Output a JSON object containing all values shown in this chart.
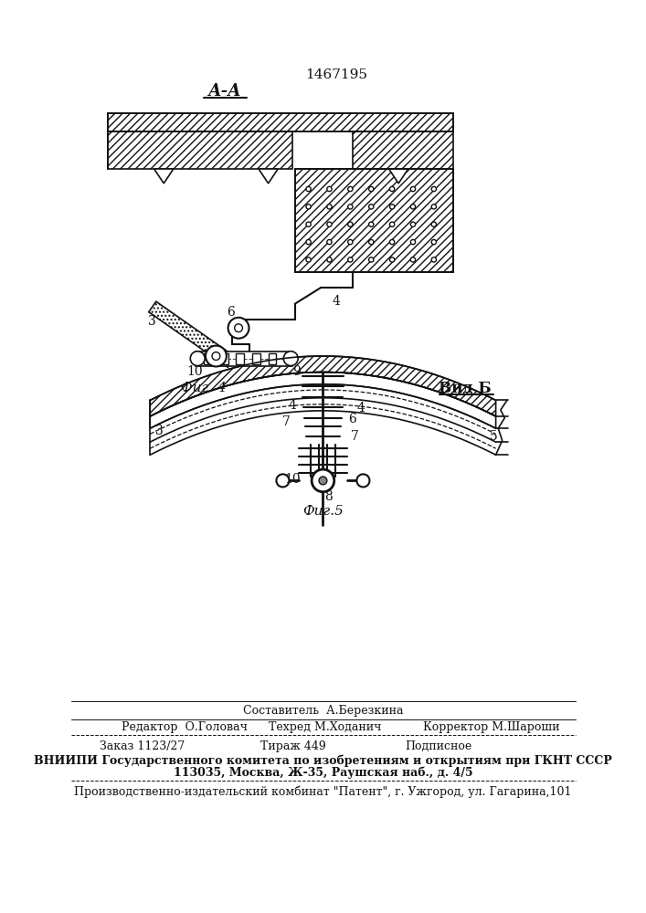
{
  "patent_number": "1467195",
  "title_AA": "А-А",
  "fig4_label": "Фиг. 4",
  "fig5_label": "Фиг.5",
  "vidB_label": "Вид Б",
  "sestavitel": "Составитель  А.Березкина",
  "redaktor": "Редактор  О.Головач",
  "tehred": "Техред М.Ходанич",
  "korrektor": "Корректор М.Шароши",
  "zakaz": "Заказ 1123/27",
  "tirazh": "Тираж 449",
  "podpisnoe": "Подписное",
  "vniiipi_line1": "ВНИИПИ Государственного комитета по изобретениям и открытиям при ГКНТ СССР",
  "vniiipi_line2": "113035, Москва, Ж-35, Раушская наб., д. 4/5",
  "proizv": "Производственно-издательский комбинат \"Патент\", г. Ужгород, ул. Гагарина,101",
  "line_color": "#111111"
}
